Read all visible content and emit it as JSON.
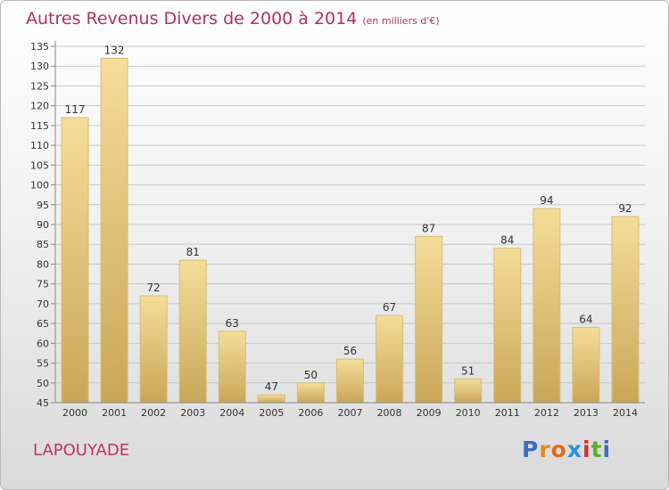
{
  "title": "Autres Revenus Divers de 2000 à 2014",
  "title_unit": "(en milliers d'€)",
  "place_name": "LAPOUYADE",
  "brand": {
    "letters": [
      "P",
      "r",
      "o",
      "x",
      "i",
      "t",
      "i"
    ],
    "colors": [
      "#3b6fc2",
      "#e08a1d",
      "#e06a1d",
      "#2c8ee0",
      "#d92f2f",
      "#5cae2e",
      "#3b6fc2"
    ]
  },
  "colors": {
    "bar_top": "#f5dd9a",
    "bar_bottom": "#c9a758",
    "bar_edge": "#d8bd76",
    "axis": "#888888",
    "grid": "#c8c8c8",
    "text": "#333333"
  },
  "chart_data": {
    "type": "bar",
    "categories": [
      "2000",
      "2001",
      "2002",
      "2003",
      "2004",
      "2005",
      "2006",
      "2007",
      "2008",
      "2009",
      "2010",
      "2011",
      "2012",
      "2013",
      "2014"
    ],
    "values": [
      117,
      132,
      72,
      81,
      63,
      47,
      50,
      56,
      67,
      87,
      51,
      84,
      94,
      64,
      92
    ],
    "ylim": [
      45,
      135
    ],
    "yticks": [
      45,
      50,
      55,
      60,
      65,
      70,
      75,
      80,
      85,
      90,
      95,
      100,
      105,
      110,
      115,
      120,
      125,
      130,
      135
    ],
    "grid": true,
    "data_labels": true
  }
}
